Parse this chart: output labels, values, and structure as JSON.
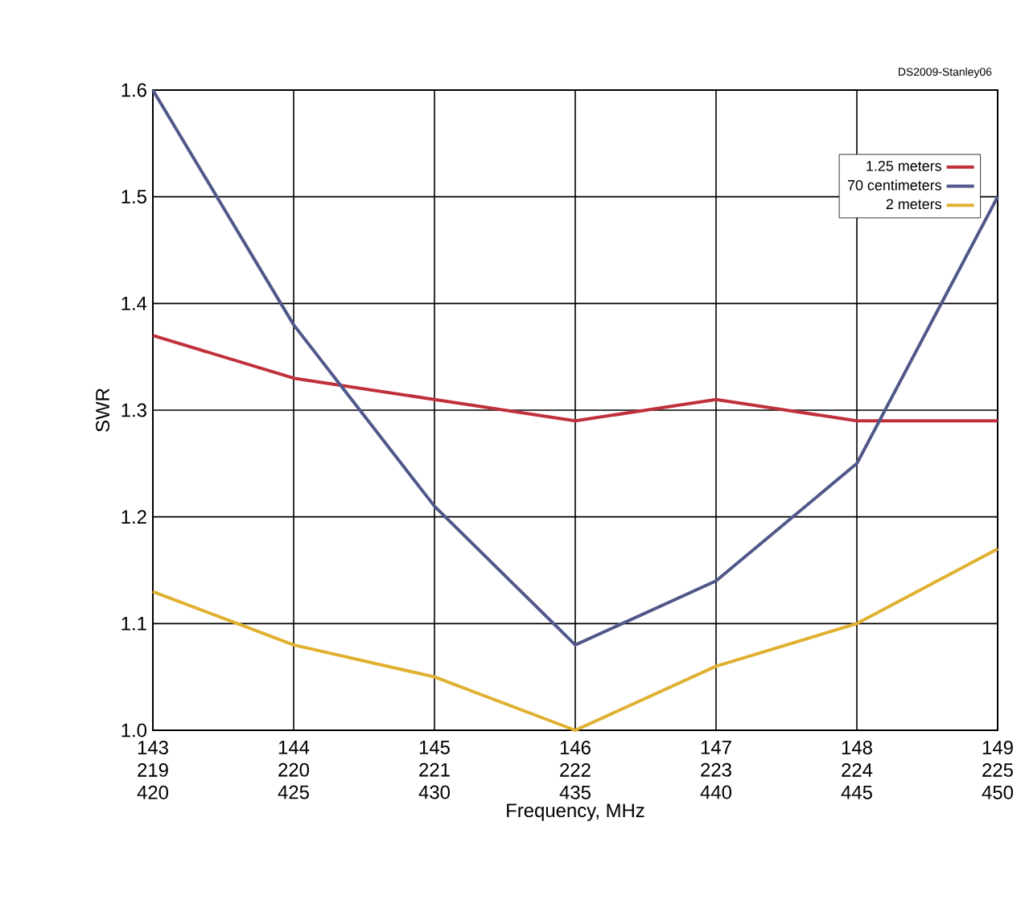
{
  "chart_data": {
    "type": "line",
    "xlabel": "Frequency, MHz",
    "ylabel": "SWR",
    "categories": [
      "143 219 420",
      "144 220 425",
      "145 221 430",
      "146 222 435",
      "147 223 440",
      "148 224 445",
      "149 225 450"
    ],
    "series": [
      {
        "name": "1.25 meters",
        "color": "#c0303a",
        "values": [
          1.37,
          1.33,
          1.31,
          1.29,
          1.31,
          1.29,
          1.29
        ]
      },
      {
        "name": "70 centimeters",
        "color": "#50588a",
        "values": [
          1.6,
          1.38,
          1.21,
          1.08,
          1.14,
          1.25,
          1.5
        ]
      },
      {
        "name": "2 meters",
        "color": "#e0b030",
        "values": [
          1.13,
          1.08,
          1.05,
          1.0,
          1.06,
          1.1,
          1.17
        ]
      }
    ],
    "ylim": [
      1.0,
      1.6
    ],
    "yticks": [
      {
        "value": 1.0,
        "label": "1.0"
      },
      1.1,
      1.2,
      1.3,
      1.4,
      1.5,
      1.6
    ],
    "grid": true,
    "legend": "top right",
    "marker": "none",
    "line_style": "solid",
    "annotations": [
      "DS2009-Stanley06"
    ]
  }
}
